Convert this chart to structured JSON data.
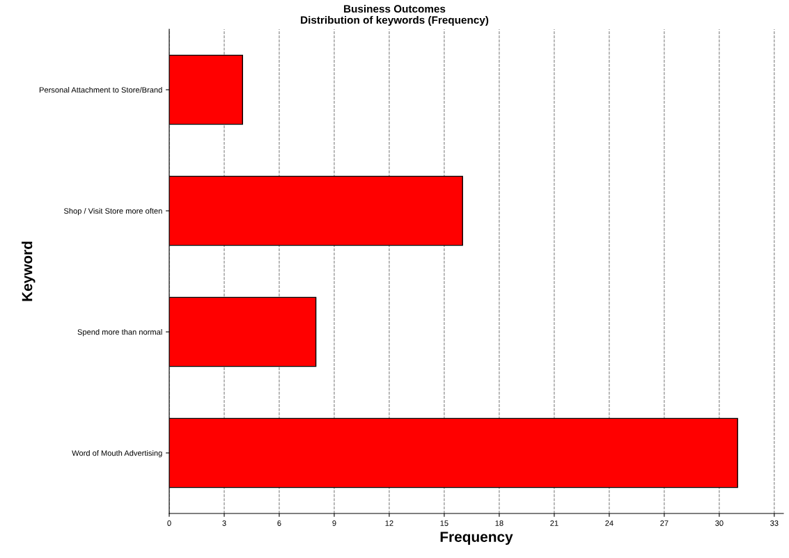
{
  "chart_data": {
    "type": "bar",
    "orientation": "horizontal",
    "title": "Business Outcomes",
    "subtitle": "Distribution of keywords (Frequency)",
    "xlabel": "Frequency",
    "ylabel": "Keyword",
    "categories": [
      "Personal Attachment to Store/Brand",
      "Shop / Visit Store more often",
      "Spend more than normal",
      "Word of Mouth Advertising"
    ],
    "values": [
      4,
      16,
      8,
      31
    ],
    "color": "#ff0000",
    "xlim": [
      0,
      33.5
    ],
    "xticks": [
      0,
      3,
      6,
      9,
      12,
      15,
      18,
      21,
      24,
      27,
      30,
      33
    ],
    "grid": "x",
    "line_style": "dashed"
  }
}
